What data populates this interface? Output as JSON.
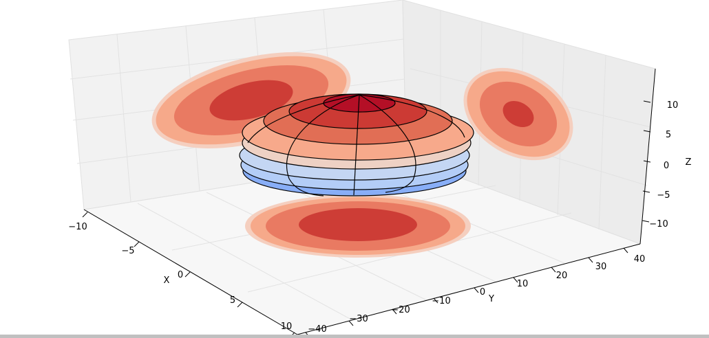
{
  "chart_data": {
    "type": "surface3d",
    "title": "",
    "xlabel": "X",
    "ylabel": "Y",
    "zlabel": "Z",
    "xlim": [
      -10,
      10
    ],
    "ylim": [
      -40,
      40
    ],
    "zlim": [
      -14,
      14
    ],
    "x_ticks": [
      "−10",
      "−5",
      "0",
      "5",
      "10"
    ],
    "y_ticks": [
      "−40",
      "−30",
      "−20",
      "−10",
      "0",
      "10",
      "20",
      "30",
      "40"
    ],
    "z_ticks": [
      "−10",
      "−5",
      "0",
      "5",
      "10"
    ],
    "colormap": "coolwarm",
    "contour_projections": [
      "x-wall",
      "y-wall",
      "z-floor"
    ],
    "grid": true
  }
}
